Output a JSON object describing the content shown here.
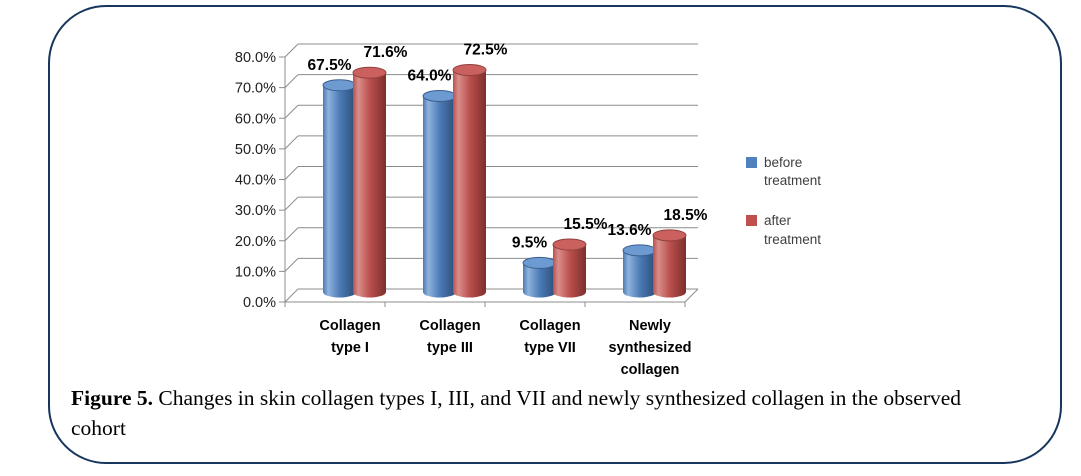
{
  "panel": {
    "border_color": "#17365D",
    "background": "#FFFFFF"
  },
  "figure": {
    "caption_label": "Figure 5.",
    "caption_text": "Changes in skin collagen types I, III, and VII and newly synthesized collagen in the observed cohort"
  },
  "chart_data": {
    "type": "bar",
    "subtype": "3d-cylinder",
    "title": "",
    "xlabel": "",
    "ylabel": "",
    "categories": [
      "Collagen type I",
      "Collagen type III",
      "Collagen type VII",
      "Newly synthesized collagen"
    ],
    "categories_wrapped": [
      [
        "Collagen",
        "type I"
      ],
      [
        "Collagen",
        "type III"
      ],
      [
        "Collagen",
        "type VII"
      ],
      [
        "Newly",
        "synthesized",
        "collagen"
      ]
    ],
    "series": [
      {
        "name": "before treatment",
        "color": "#4F81BD",
        "gradient": {
          "light": "#8FB2DC",
          "base": "#4A7AB5",
          "dark": "#2B4D77"
        },
        "top_color": "#6D9BD1",
        "edge_color": "#3A5F8F",
        "values": [
          67.5,
          64.0,
          9.5,
          13.6
        ]
      },
      {
        "name": "after treatment",
        "color": "#C0504D",
        "gradient": {
          "light": "#D98E8B",
          "base": "#B94F4C",
          "dark": "#7C2F2D"
        },
        "top_color": "#CA615E",
        "edge_color": "#94403D",
        "values": [
          71.6,
          72.5,
          15.5,
          18.5
        ]
      }
    ],
    "data_labels": [
      [
        "67.5%",
        "64.0%",
        "9.5%",
        "13.6%"
      ],
      [
        "71.6%",
        "72.5%",
        "15.5%",
        "18.5%"
      ]
    ],
    "ylim": [
      0,
      80
    ],
    "ytick_step": 10,
    "ytick_labels": [
      "0.0%",
      "10.0%",
      "20.0%",
      "30.0%",
      "40.0%",
      "50.0%",
      "60.0%",
      "70.0%",
      "80.0%"
    ],
    "grid": true,
    "gridline_color": "#8C8C8C",
    "legend_position": "right"
  }
}
